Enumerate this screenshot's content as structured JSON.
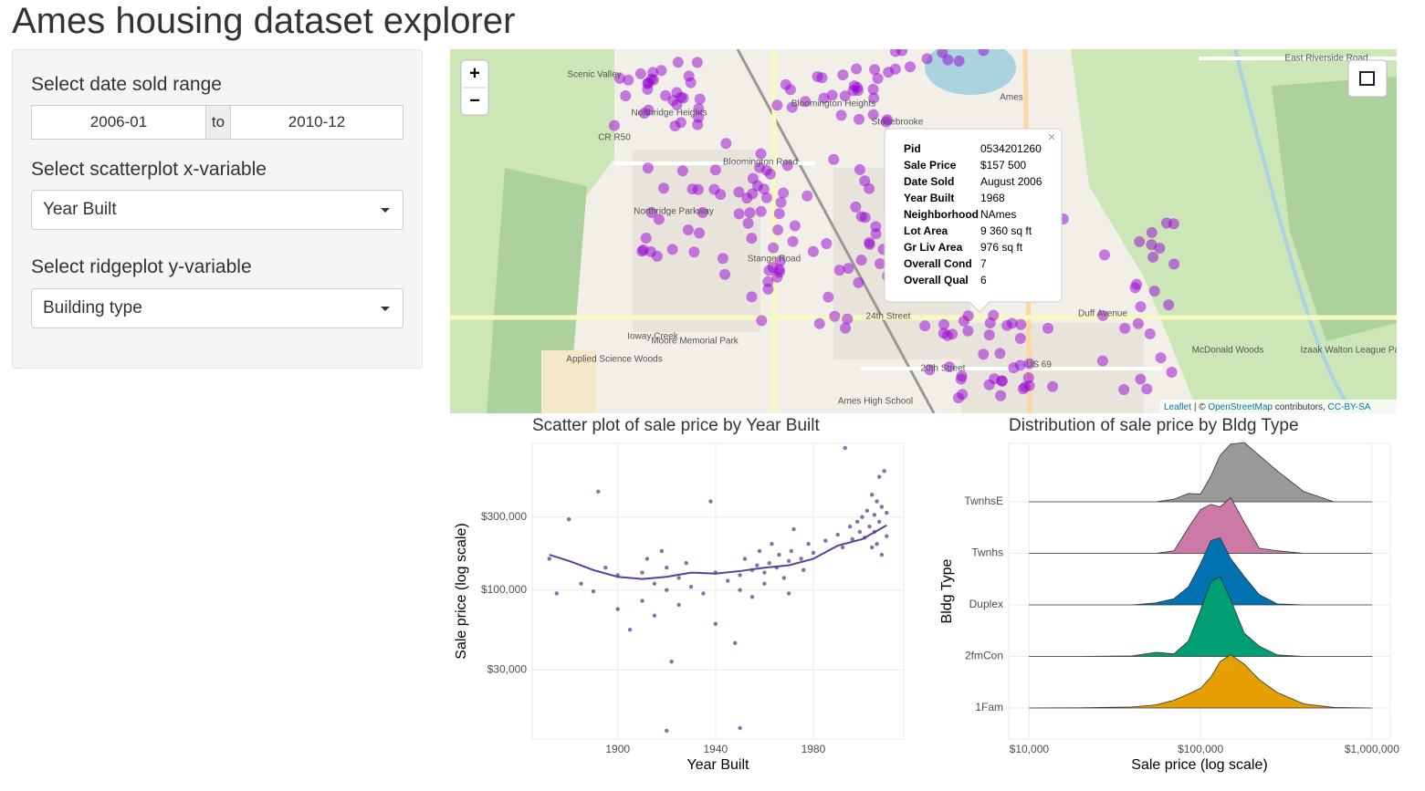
{
  "header": {
    "title": "Ames housing dataset explorer"
  },
  "sidebar": {
    "date_label": "Select date sold range",
    "date_start": "2006-01",
    "date_sep": "to",
    "date_end": "2010-12",
    "x_label": "Select scatterplot x-variable",
    "x_value": "Year Built",
    "y_label": "Select ridgeplot y-variable",
    "y_value": "Building type"
  },
  "map": {
    "zoom_in": "+",
    "zoom_out": "−",
    "close": "×",
    "labels": [
      "Scenic Valley",
      "Northridge Heights",
      "CR R50",
      "Bloomington Road",
      "Northridge Parkway",
      "Stange Road",
      "24th Street",
      "20th Street",
      "Ioway Creek",
      "Moore Memorial Park",
      "Applied Science Woods",
      "Ames High School",
      "East Riverside Road",
      "Ames",
      "McDonald Woods",
      "Izaak Walton League Park",
      "Duff Avenue",
      "US 69",
      "Bloomington Heights",
      "Stonebrooke"
    ],
    "popup": [
      [
        "Pid",
        "0534201260"
      ],
      [
        "Sale Price",
        "$157 500"
      ],
      [
        "Date Sold",
        "August 2006"
      ],
      [
        "Year Built",
        "1968"
      ],
      [
        "Neighborhood",
        "NAmes"
      ],
      [
        "Lot Area",
        "9 360 sq ft"
      ],
      [
        "Gr Liv Area",
        "976 sq ft"
      ],
      [
        "Overall Cond",
        "7"
      ],
      [
        "Overall Qual",
        "6"
      ]
    ],
    "attribution": {
      "leaflet": "Leaflet",
      "sep": "| ©",
      "osm": "OpenStreetMap",
      "rest": "contributors,",
      "license": "CC-BY-SA"
    }
  },
  "chart_data": [
    {
      "type": "scatter",
      "title": "Scatter plot of sale price by Year Built",
      "x_label": "Year Built",
      "y_label": "Sale price (log scale)",
      "color": "#1f1a6e",
      "log_y": true,
      "grid": true,
      "xlim": [
        1865,
        2017
      ],
      "ylim": [
        10600,
        910000
      ],
      "xticks": [
        1900,
        1940,
        1980
      ],
      "yticks": [
        {
          "value": 30000,
          "label": "$30,000"
        },
        {
          "value": 100000,
          "label": "$100,000"
        },
        {
          "value": 300000,
          "label": "$300,000"
        }
      ],
      "x": [
        1872,
        1875,
        1880,
        1885,
        1890,
        1892,
        1895,
        1900,
        1900,
        1905,
        1910,
        1910,
        1912,
        1915,
        1915,
        1918,
        1920,
        1920,
        1920,
        1922,
        1925,
        1925,
        1928,
        1930,
        1935,
        1938,
        1940,
        1940,
        1945,
        1948,
        1950,
        1950,
        1950,
        1952,
        1955,
        1955,
        1957,
        1958,
        1960,
        1960,
        1962,
        1963,
        1965,
        1966,
        1968,
        1970,
        1970,
        1971,
        1972,
        1975,
        1976,
        1978,
        1980,
        1985,
        1990,
        1992,
        1993,
        1995,
        1996,
        1998,
        1999,
        2000,
        2001,
        2002,
        2003,
        2004,
        2004,
        2005,
        2005,
        2006,
        2006,
        2007,
        2007,
        2008,
        2008,
        2009,
        2010,
        2010
      ],
      "values": [
        160000,
        95000,
        290000,
        110000,
        98000,
        440000,
        140000,
        125000,
        75000,
        55000,
        130000,
        85000,
        160000,
        110000,
        68000,
        180000,
        12000,
        100000,
        140000,
        34000,
        120000,
        80000,
        150000,
        105000,
        95000,
        380000,
        130000,
        60000,
        115000,
        45000,
        12500,
        125000,
        100000,
        160000,
        135000,
        90000,
        145000,
        180000,
        130000,
        110000,
        150000,
        200000,
        140000,
        170000,
        120000,
        155000,
        95000,
        180000,
        250000,
        160000,
        135000,
        200000,
        175000,
        210000,
        230000,
        190000,
        850000,
        260000,
        215000,
        280000,
        240000,
        300000,
        220000,
        330000,
        260000,
        190000,
        420000,
        310000,
        240000,
        380000,
        200000,
        550000,
        280000,
        350000,
        170000,
        600000,
        320000,
        225000
      ],
      "smooth": {
        "color": "#5e3c99",
        "x": [
          1872,
          1880,
          1890,
          1900,
          1910,
          1920,
          1930,
          1940,
          1950,
          1960,
          1970,
          1980,
          1990,
          2000,
          2010
        ],
        "values": [
          170000,
          155000,
          135000,
          122000,
          118000,
          122000,
          130000,
          128000,
          133000,
          140000,
          145000,
          160000,
          195000,
          215000,
          265000
        ]
      }
    },
    {
      "type": "ridgeline",
      "title": "Distribution of sale price by Bldg Type",
      "x_label": "Sale price (log scale)",
      "y_label": "Bldg Type",
      "log_x": true,
      "grid": true,
      "xlim": [
        7600,
        1280000
      ],
      "xticks": [
        {
          "value": 10000,
          "label": "$10,000"
        },
        {
          "value": 100000,
          "label": "$100,000"
        },
        {
          "value": 1000000,
          "label": "$1,000,000"
        }
      ],
      "x": [
        10000,
        20000,
        40000,
        55000,
        70000,
        85000,
        100000,
        115000,
        130000,
        150000,
        180000,
        220000,
        280000,
        400000,
        600000,
        1000000
      ],
      "series": [
        {
          "name": "1Fam",
          "color": "#E69F00",
          "values": [
            0,
            0.005,
            0.02,
            0.06,
            0.15,
            0.27,
            0.38,
            0.6,
            0.9,
            1.03,
            0.85,
            0.55,
            0.3,
            0.08,
            0.01,
            0
          ]
        },
        {
          "name": "2fmCon",
          "color": "#009E73",
          "values": [
            0,
            0,
            0.01,
            0.08,
            0.05,
            0.3,
            0.9,
            1.45,
            1.55,
            1.1,
            0.45,
            0.2,
            0.03,
            0,
            0,
            0
          ]
        },
        {
          "name": "Duplex",
          "color": "#0072B2",
          "values": [
            0,
            0,
            0,
            0.04,
            0.12,
            0.35,
            0.8,
            1.25,
            1.3,
            0.9,
            0.55,
            0.2,
            0.02,
            0,
            0,
            0
          ]
        },
        {
          "name": "Twnhs",
          "color": "#CC79A7",
          "values": [
            0,
            0,
            0,
            0,
            0.05,
            0.5,
            0.85,
            0.95,
            0.9,
            1.08,
            0.6,
            0.1,
            0.05,
            0,
            0,
            0
          ]
        },
        {
          "name": "TwnhsE",
          "color": "#999999",
          "values": [
            0,
            0,
            0,
            0,
            0.05,
            0.16,
            0.15,
            0.5,
            0.9,
            1.12,
            1.15,
            0.9,
            0.6,
            0.2,
            0,
            0
          ]
        }
      ]
    }
  ]
}
